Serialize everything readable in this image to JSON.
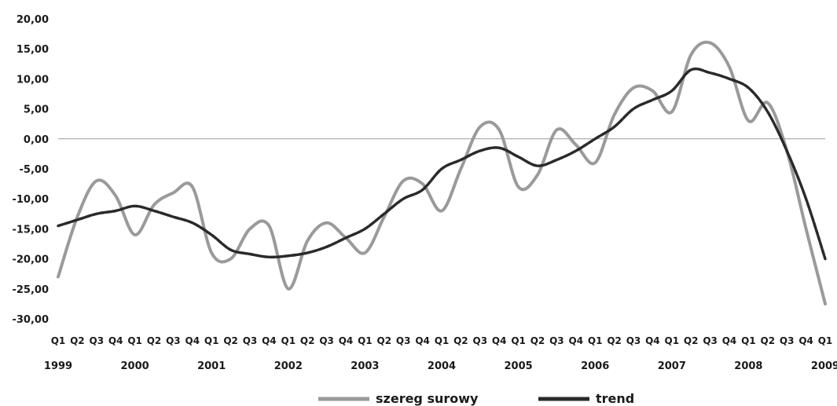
{
  "chart_data": {
    "type": "line",
    "ylim": [
      -30,
      20
    ],
    "yticks": [
      "20,00",
      "15,00",
      "10,00",
      "5,00",
      "0,00",
      "-5,00",
      "-10,00",
      "-15,00",
      "-20,00",
      "-25,00",
      "-30,00"
    ],
    "quarter_labels": [
      "Q1",
      "Q2",
      "Q3",
      "Q4",
      "Q1",
      "Q2",
      "Q3",
      "Q4",
      "Q1",
      "Q2",
      "Q3",
      "Q4",
      "Q1",
      "Q2",
      "Q3",
      "Q4",
      "Q1",
      "Q2",
      "Q3",
      "Q4",
      "Q1",
      "Q2",
      "Q3",
      "Q4",
      "Q1",
      "Q2",
      "Q3",
      "Q4",
      "Q1",
      "Q2",
      "Q3",
      "Q4",
      "Q1",
      "Q2",
      "Q3",
      "Q4",
      "Q1",
      "Q2",
      "Q3",
      "Q4",
      "Q1"
    ],
    "year_labels": [
      "1999",
      "2000",
      "2001",
      "2002",
      "2003",
      "2004",
      "2005",
      "2006",
      "2007",
      "2008",
      "2009"
    ],
    "x": [
      1999.0,
      1999.25,
      1999.5,
      1999.75,
      2000.0,
      2000.25,
      2000.5,
      2000.75,
      2001.0,
      2001.25,
      2001.5,
      2001.75,
      2002.0,
      2002.25,
      2002.5,
      2002.75,
      2003.0,
      2003.25,
      2003.5,
      2003.75,
      2004.0,
      2004.25,
      2004.5,
      2004.75,
      2005.0,
      2005.25,
      2005.5,
      2005.75,
      2006.0,
      2006.25,
      2006.5,
      2006.75,
      2007.0,
      2007.25,
      2007.5,
      2007.75,
      2008.0,
      2008.25,
      2008.5,
      2008.75,
      2009.0
    ],
    "series": [
      {
        "name": "szereg surowy",
        "color": "#9a9a9a",
        "values": [
          -23.0,
          -13.0,
          -7.0,
          -9.5,
          -16.0,
          -11.0,
          -9.0,
          -8.0,
          -19.0,
          -20.0,
          -15.0,
          -14.5,
          -25.0,
          -17.0,
          -14.0,
          -16.5,
          -19.0,
          -13.0,
          -7.0,
          -7.5,
          -12.0,
          -5.0,
          2.0,
          1.5,
          -8.0,
          -6.0,
          1.5,
          -1.0,
          -4.0,
          4.0,
          8.5,
          8.0,
          4.5,
          14.0,
          16.0,
          12.0,
          3.0,
          6.0,
          -2.0,
          -15.0,
          -27.5
        ]
      },
      {
        "name": "trend",
        "color": "#2a2a2a",
        "values": [
          -14.5,
          -13.5,
          -12.5,
          -12.0,
          -11.2,
          -12.0,
          -13.0,
          -14.0,
          -16.0,
          -18.5,
          -19.2,
          -19.7,
          -19.5,
          -19.0,
          -18.0,
          -16.5,
          -15.0,
          -12.5,
          -10.0,
          -8.5,
          -5.0,
          -3.5,
          -2.0,
          -1.5,
          -3.0,
          -4.5,
          -3.5,
          -2.0,
          0.0,
          2.0,
          5.0,
          6.5,
          8.0,
          11.5,
          11.0,
          10.0,
          8.5,
          4.5,
          -2.0,
          -10.0,
          -20.0
        ]
      }
    ]
  }
}
